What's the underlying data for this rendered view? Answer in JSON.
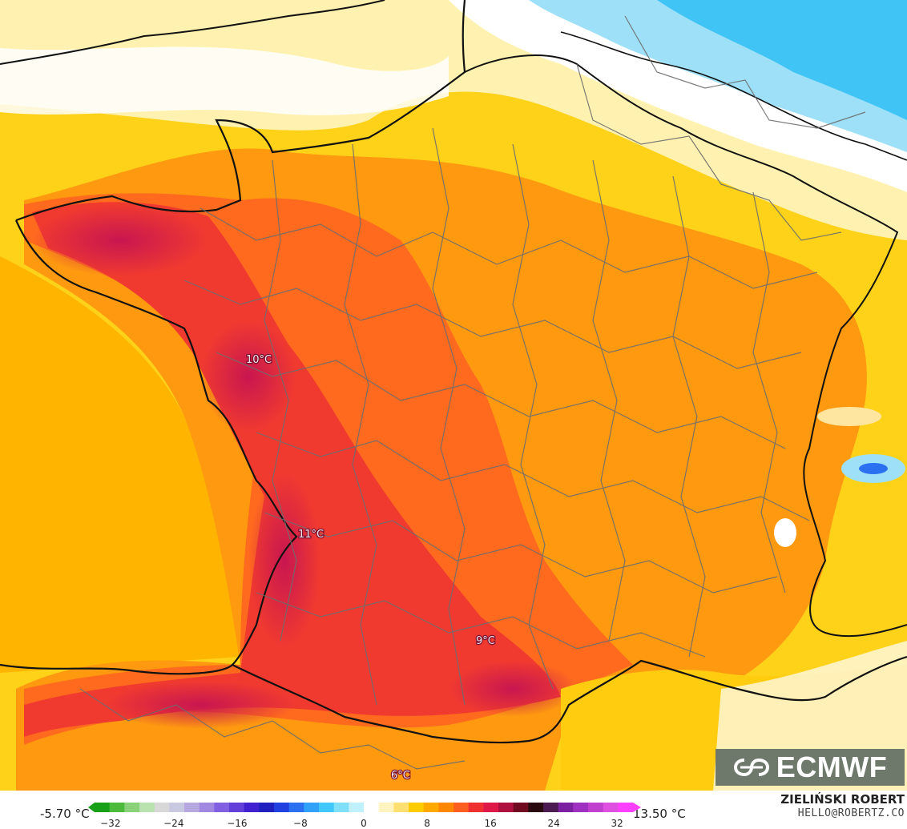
{
  "map": {
    "labels": [
      {
        "text": "10°C"
      },
      {
        "text": "11°C"
      },
      {
        "text": "9°C"
      },
      {
        "text": "6°C"
      }
    ]
  },
  "brand": {
    "logo_text": "ECMWF",
    "logo_icon": "ecmwf-logo-icon"
  },
  "footer": {
    "min_value": "-5.70 °C",
    "max_value": "13.50 °C",
    "author": "ZIELIŃSKI ROBERT",
    "contact": "HELLO@ROBERTZ.CO"
  },
  "colorbar": {
    "ticks": [
      "−32",
      "−24",
      "−16",
      "−8",
      "0",
      "8",
      "16",
      "24",
      "32"
    ],
    "tick_values": [
      -32,
      -24,
      -16,
      -8,
      0,
      8,
      16,
      24,
      32
    ],
    "range": [
      -34,
      34
    ],
    "colors": [
      "#19a019",
      "#4cbb3c",
      "#8ad27a",
      "#b8e2b0",
      "#d8d8d8",
      "#c8c8e0",
      "#b8a8e0",
      "#a088e0",
      "#8060e0",
      "#6040d8",
      "#4020d0",
      "#2020c0",
      "#2040e0",
      "#2a70f0",
      "#30a0f8",
      "#40c8fa",
      "#80e0fa",
      "#c0f0fa",
      "#ffffff",
      "#fff4c0",
      "#ffe070",
      "#ffcc00",
      "#ffaa00",
      "#ff8800",
      "#ff6020",
      "#f03030",
      "#e01848",
      "#b01040",
      "#700a20",
      "#2a0a10",
      "#4a1a50",
      "#7a20a0",
      "#a030c0",
      "#c040d0",
      "#e050e0",
      "#ff40ff"
    ]
  }
}
